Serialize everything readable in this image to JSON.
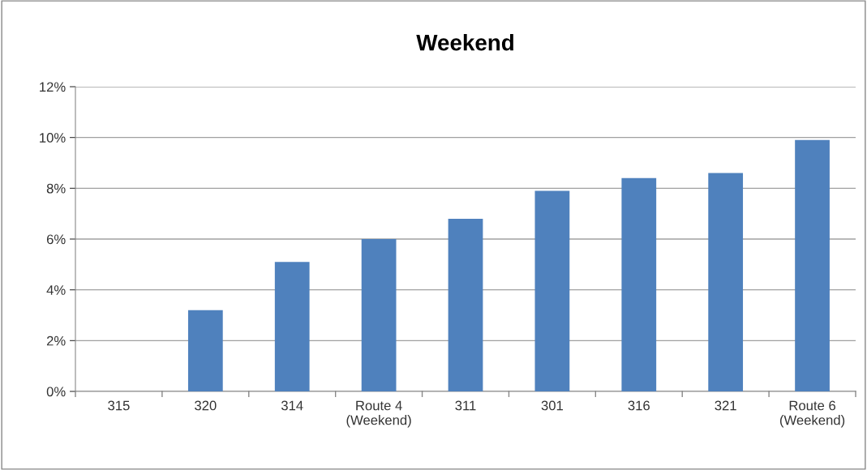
{
  "chart_data": {
    "type": "bar",
    "title": "Weekend",
    "categories": [
      "315",
      "320",
      "314",
      "Route 4\n(Weekend)",
      "311",
      "301",
      "316",
      "321",
      "Route 6\n(Weekend)"
    ],
    "values": [
      0,
      3.2,
      5.1,
      6.0,
      6.8,
      7.9,
      8.4,
      8.6,
      9.9
    ],
    "color": "#4f81bd",
    "ylim": [
      0,
      12
    ],
    "yticks": [
      {
        "value": 0,
        "label": "0%"
      },
      {
        "value": 2,
        "label": "2%"
      },
      {
        "value": 4,
        "label": "4%"
      },
      {
        "value": 6,
        "label": "6%"
      },
      {
        "value": 8,
        "label": "8%"
      },
      {
        "value": 10,
        "label": "10%"
      },
      {
        "value": 12,
        "label": "12%"
      }
    ],
    "grid": "y"
  }
}
